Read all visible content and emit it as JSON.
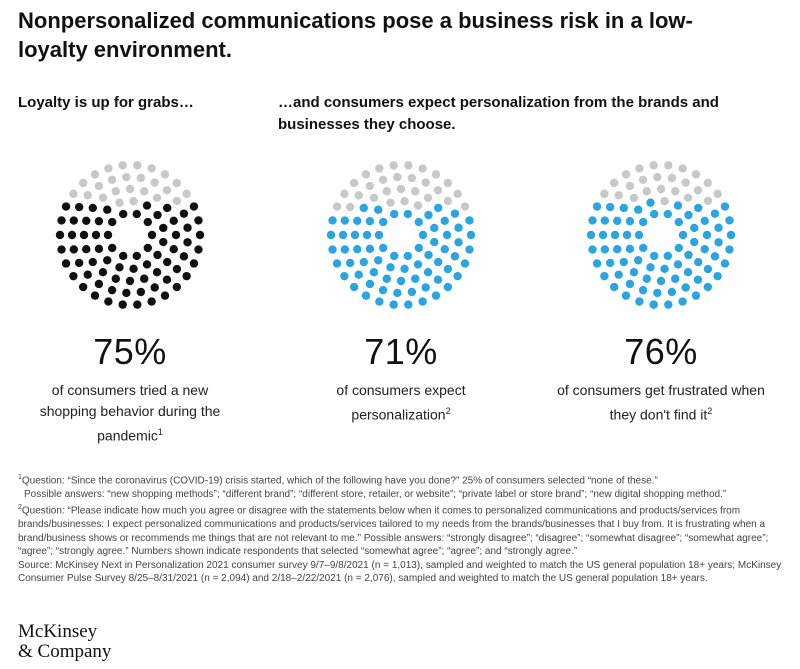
{
  "title": "Nonpersonalized communications pose a business risk in a low-loyalty environment.",
  "subhead_left": "Loyalty is up for grabs…",
  "subhead_right": "…and consumers expect personalization from the brands and businesses they choose.",
  "chart_data": [
    {
      "type": "dot-fill",
      "value": 75,
      "value_label": "75%",
      "caption": "of consumers tried a new shopping behavior during the pandemic",
      "footnote_ref": "1",
      "fill_color": "#111111",
      "empty_color": "#c8c8c8"
    },
    {
      "type": "dot-fill",
      "value": 71,
      "value_label": "71%",
      "caption": "of consumers expect personalization",
      "footnote_ref": "2",
      "fill_color": "#2aa5e0",
      "empty_color": "#c8c8c8"
    },
    {
      "type": "dot-fill",
      "value": 76,
      "value_label": "76%",
      "caption": "of consumers get frustrated when they don't find it",
      "footnote_ref": "2",
      "fill_color": "#2aa5e0",
      "empty_color": "#c8c8c8"
    }
  ],
  "footnotes": {
    "n1_num": "1",
    "n1_a": "Question: “Since the coronavirus (COVID-19) crisis started, which of the following have you done?” 25% of consumers selected “none of these.”",
    "n1_b": "Possible answers: “new shopping methods”; “different brand”; “different store, retailer, or website”; “private label or store brand”; “new digital shopping method.”",
    "n2_num": "2",
    "n2": "Question: “Please indicate how much you agree or disagree with the statements below when it comes to personalized communications and products/services from brands/businesses: I expect personalized communications and products/services tailored to my needs from the brands/businesses that I buy from. It is frustrating when a brand/business shows or recommends me things that are not relevant to me.” Possible answers: “strongly disagree”; “disagree”; “somewhat disagree”; “somewhat agree”; “agree”; “strongly agree.” Numbers shown indicate respondents that selected “somewhat agree”; “agree”; and “strongly agree.”",
    "source": "Source: McKinsey Next in Personalization 2021 consumer survey 9/7–9/8/2021 (n = 1,013), sampled and weighted to match the US general population 18+ years; McKinsey Consumer Pulse Survey 8/25–8/31/2021 (n = 2,094) and 2/18–2/22/2021 (n = 2,076), sampled and weighted to match the US general population 18+ years."
  },
  "logo": {
    "line1": "McKinsey",
    "line2": "& Company"
  }
}
